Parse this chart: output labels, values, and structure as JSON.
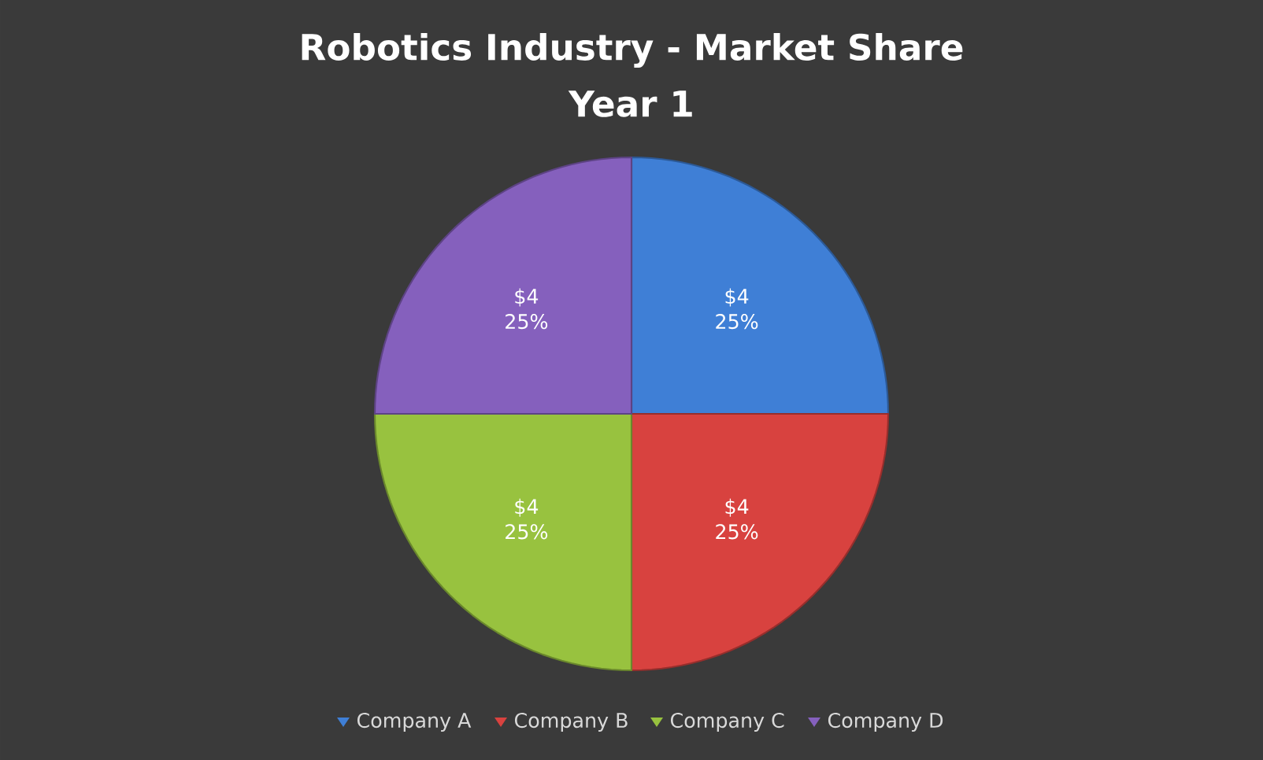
{
  "chart_data": {
    "type": "pie",
    "title": "Robotics Industry - Market Share",
    "subtitle": "Year 1",
    "categories": [
      "Company A",
      "Company B",
      "Company C",
      "Company D"
    ],
    "values": [
      4,
      4,
      4,
      4
    ],
    "colors": [
      "#3f7fd6",
      "#d8423f",
      "#98c23f",
      "#8560bd"
    ],
    "value_labels": [
      "$4 25%",
      "$4 25%",
      "$4 25%",
      "$4 25%"
    ],
    "legend": "bottom"
  }
}
